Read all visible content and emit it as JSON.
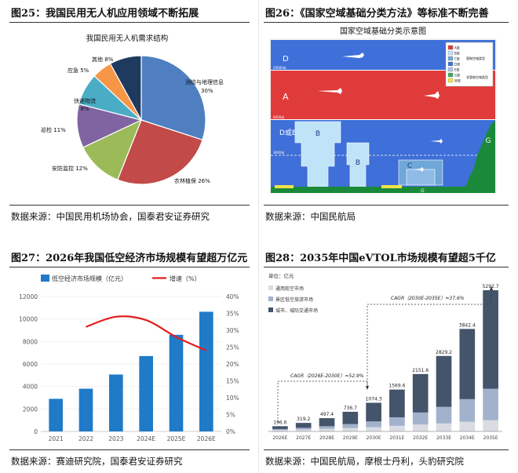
{
  "panels": [
    {
      "title": "图25：我国民用无人机应用领域不断拓展",
      "source": "数据来源：中国民用机场协会，国泰君安证券研究"
    },
    {
      "title": "图26：《国家空域基础分类方法》等标准不断完善",
      "source": "数据来源：中国民航局"
    },
    {
      "title": "图27：2026年我国低空经济市场规模有望超万亿元",
      "source": "数据来源：赛迪研究院，国泰君安证券研究"
    },
    {
      "title": "图28：2035年中国eVTOL市场规模有望超5千亿",
      "source": "数据来源：中国民航局，摩根士丹利，头豹研究院"
    }
  ],
  "chart_data": [
    {
      "type": "pie",
      "title": "我国民用无人机需求结构",
      "slices": [
        {
          "label": "测绘与地理信息",
          "value": 30,
          "text": "30%",
          "color": "#4f7fc0"
        },
        {
          "label": "农林植保",
          "value": 26,
          "text": "26%",
          "color": "#c24a48"
        },
        {
          "label": "安防监控",
          "value": 12,
          "text": "12%",
          "color": "#9bbb59"
        },
        {
          "label": "巡检",
          "value": 11,
          "text": "11%",
          "color": "#8064a2"
        },
        {
          "label": "快递物流",
          "value": 8,
          "text": "8%",
          "color": "#4bacc6"
        },
        {
          "label": "应急",
          "value": 5,
          "text": "5%",
          "color": "#f79646"
        },
        {
          "label": "其他",
          "value": 8,
          "text": "8%",
          "color": "#1f3a5f"
        }
      ]
    },
    {
      "type": "diagram",
      "title": "国家空域基础分类示意图",
      "bands": [
        {
          "label": "D",
          "color": "#3f6fd8"
        },
        {
          "label": "A",
          "color": "#e03b3b"
        },
        {
          "label": "D或E",
          "color": "#3f6fd8"
        },
        {
          "label": "G",
          "color": "#1a8a3a"
        }
      ],
      "labels": {
        "b": "B",
        "c": "C",
        "g": "G",
        "h1": "20000米",
        "h2": "6000米",
        "h3": "3000米",
        "h4": "真高600米"
      },
      "legend": [
        {
          "label": "A类",
          "color": "#e03b3b"
        },
        {
          "label": "B类",
          "color": "#bfe3f7"
        },
        {
          "label": "C类",
          "color": "#6fa7d8"
        },
        {
          "label": "D类",
          "color": "#3f6fd8"
        },
        {
          "label": "E类",
          "color": "#a7c7ee"
        },
        {
          "label": "G类",
          "color": "#3fa55a"
        },
        {
          "label": "W类",
          "color": "#f3e24b"
        }
      ],
      "legend_groups": {
        "controlled": "管制空域类型",
        "uncontrolled": "非管制空域类型"
      }
    },
    {
      "type": "bar",
      "categories": [
        "2021",
        "2022",
        "2023",
        "2024E",
        "2025E",
        "2026E"
      ],
      "series": [
        {
          "name": "低空经济市场规模（亿元）",
          "values": [
            2900,
            3800,
            5060,
            6702,
            8591,
            10644
          ],
          "color": "#1f7ac8"
        }
      ],
      "line": {
        "name": "增速（%）",
        "values": [
          null,
          31,
          34,
          33,
          28,
          24
        ],
        "color": "#e41e1e"
      },
      "ylim": [
        0,
        12000
      ],
      "y_ticks": [
        "0",
        "2000",
        "4000",
        "6000",
        "8000",
        "10000",
        "12000"
      ],
      "y2lim": [
        0,
        40
      ],
      "y2_ticks": [
        "0%",
        "5%",
        "10%",
        "15%",
        "20%",
        "25%",
        "30%",
        "35%",
        "40%"
      ],
      "legend_position": "top-left"
    },
    {
      "type": "bar",
      "stacked": true,
      "unit": "单位：亿元",
      "categories": [
        "2026E",
        "2027E",
        "2028E",
        "2029E",
        "2030E",
        "2031E",
        "2032E",
        "2033E",
        "2034E",
        "2035E"
      ],
      "totals": [
        196.6,
        319.2,
        497.4,
        736.7,
        1074.3,
        1569.6,
        2151.6,
        2829.2,
        3842.4,
        5292.7
      ],
      "total_labels": [
        "196.6",
        "319.2",
        "497.4",
        "736.7",
        "1074.3",
        "1569.6",
        "2151.6",
        "2829.2",
        "3842.4",
        "5292.7"
      ],
      "series": [
        {
          "name": "通用航空市场",
          "values": [
            50,
            70,
            95,
            125,
            160,
            210,
            260,
            300,
            360,
            420
          ],
          "color": "#d9dce2"
        },
        {
          "name": "景区低空旅游市场",
          "values": [
            40,
            65,
            100,
            150,
            215,
            320,
            450,
            620,
            850,
            1180
          ],
          "color": "#a3b2cc"
        },
        {
          "name": "城市、城际交通市场",
          "values": [
            106.6,
            184.2,
            302.4,
            461.7,
            699.3,
            1039.6,
            1441.6,
            1909.2,
            2632.4,
            3692.7
          ],
          "color": "#44546a"
        }
      ],
      "annotations": [
        {
          "text": "CAGR（2026E-2030E）=52.9%"
        },
        {
          "text": "CAGR（2030E-2035E）=37.6%"
        }
      ],
      "legend_position": "top-left"
    }
  ]
}
